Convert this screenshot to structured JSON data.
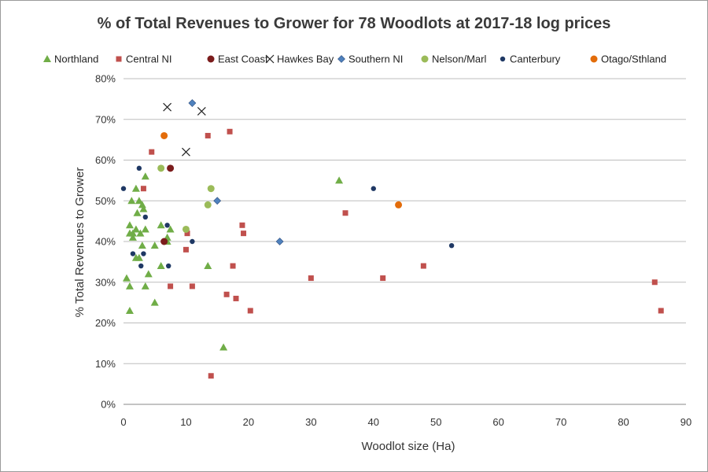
{
  "chart_data": {
    "type": "scatter",
    "title": "% of Total Revenues to Grower for 78 Woodlots at 2017-18 log prices",
    "xlabel": "Woodlot size  (Ha)",
    "ylabel": "% Total Revenues to Grower",
    "xlim": [
      0,
      90
    ],
    "ylim": [
      0,
      80
    ],
    "x_ticks": [
      "0",
      "10",
      "20",
      "30",
      "40",
      "50",
      "60",
      "70",
      "80",
      "90"
    ],
    "y_ticks": [
      "0%",
      "10%",
      "20%",
      "30%",
      "40%",
      "50%",
      "60%",
      "70%",
      "80%"
    ],
    "grid": "horizontal",
    "legend_position": "top",
    "series": [
      {
        "name": "Northland",
        "marker": "triangle",
        "color": "#70ad47",
        "points": [
          [
            0.5,
            31
          ],
          [
            1,
            23
          ],
          [
            1,
            29
          ],
          [
            1,
            44
          ],
          [
            1,
            42
          ],
          [
            1.3,
            50
          ],
          [
            1.5,
            42
          ],
          [
            1.5,
            41
          ],
          [
            2,
            43
          ],
          [
            2,
            36
          ],
          [
            2,
            53
          ],
          [
            2.2,
            47
          ],
          [
            2.5,
            50
          ],
          [
            2.5,
            36
          ],
          [
            2.7,
            42
          ],
          [
            3,
            39
          ],
          [
            3,
            49
          ],
          [
            3.2,
            48
          ],
          [
            3.5,
            56
          ],
          [
            3.5,
            43
          ],
          [
            3.5,
            29
          ],
          [
            4,
            32
          ],
          [
            5,
            39
          ],
          [
            5,
            25
          ],
          [
            6,
            34
          ],
          [
            6,
            44
          ],
          [
            7,
            41
          ],
          [
            7,
            40
          ],
          [
            7.5,
            43
          ],
          [
            13.5,
            34
          ],
          [
            16,
            14
          ],
          [
            34.5,
            55
          ]
        ]
      },
      {
        "name": "Central NI",
        "marker": "square",
        "color": "#c0504d",
        "points": [
          [
            3.2,
            53
          ],
          [
            4.5,
            62
          ],
          [
            7.5,
            29
          ],
          [
            10,
            38
          ],
          [
            10.2,
            42
          ],
          [
            11,
            29
          ],
          [
            13.5,
            66
          ],
          [
            14,
            7
          ],
          [
            16.5,
            27
          ],
          [
            17,
            67
          ],
          [
            17.5,
            34
          ],
          [
            18,
            26
          ],
          [
            19,
            44
          ],
          [
            19.2,
            42
          ],
          [
            20.3,
            23
          ],
          [
            30,
            31
          ],
          [
            35.5,
            47
          ],
          [
            41.5,
            31
          ],
          [
            48,
            34
          ],
          [
            85,
            30
          ],
          [
            86,
            23
          ]
        ]
      },
      {
        "name": "East Coast",
        "marker": "circle",
        "color": "#7b1c1c",
        "points": [
          [
            6.5,
            40
          ],
          [
            7.5,
            58
          ]
        ]
      },
      {
        "name": "Hawkes Bay",
        "marker": "x",
        "color": "#222222",
        "points": [
          [
            7,
            73
          ],
          [
            10,
            62
          ],
          [
            12.5,
            72
          ]
        ]
      },
      {
        "name": "Southern NI",
        "marker": "diamond",
        "color": "#4f81bd",
        "points": [
          [
            11,
            74
          ],
          [
            15,
            50
          ],
          [
            25,
            40
          ]
        ]
      },
      {
        "name": "Nelson/Marl",
        "marker": "circle",
        "color": "#9bbb59",
        "points": [
          [
            6,
            58
          ],
          [
            10,
            43
          ],
          [
            13.5,
            49
          ],
          [
            14,
            53
          ]
        ]
      },
      {
        "name": "Canterbury",
        "marker": "circle-small",
        "color": "#1f3864",
        "points": [
          [
            0,
            53
          ],
          [
            1.5,
            37
          ],
          [
            2.5,
            58
          ],
          [
            2.8,
            34
          ],
          [
            3.2,
            37
          ],
          [
            3.5,
            46
          ],
          [
            7,
            44
          ],
          [
            7.2,
            34
          ],
          [
            11,
            40
          ],
          [
            40,
            53
          ],
          [
            52.5,
            39
          ]
        ]
      },
      {
        "name": "Otago/Sthland",
        "marker": "circle",
        "color": "#e36c0a",
        "points": [
          [
            6.5,
            66
          ],
          [
            44,
            49
          ]
        ]
      }
    ]
  }
}
